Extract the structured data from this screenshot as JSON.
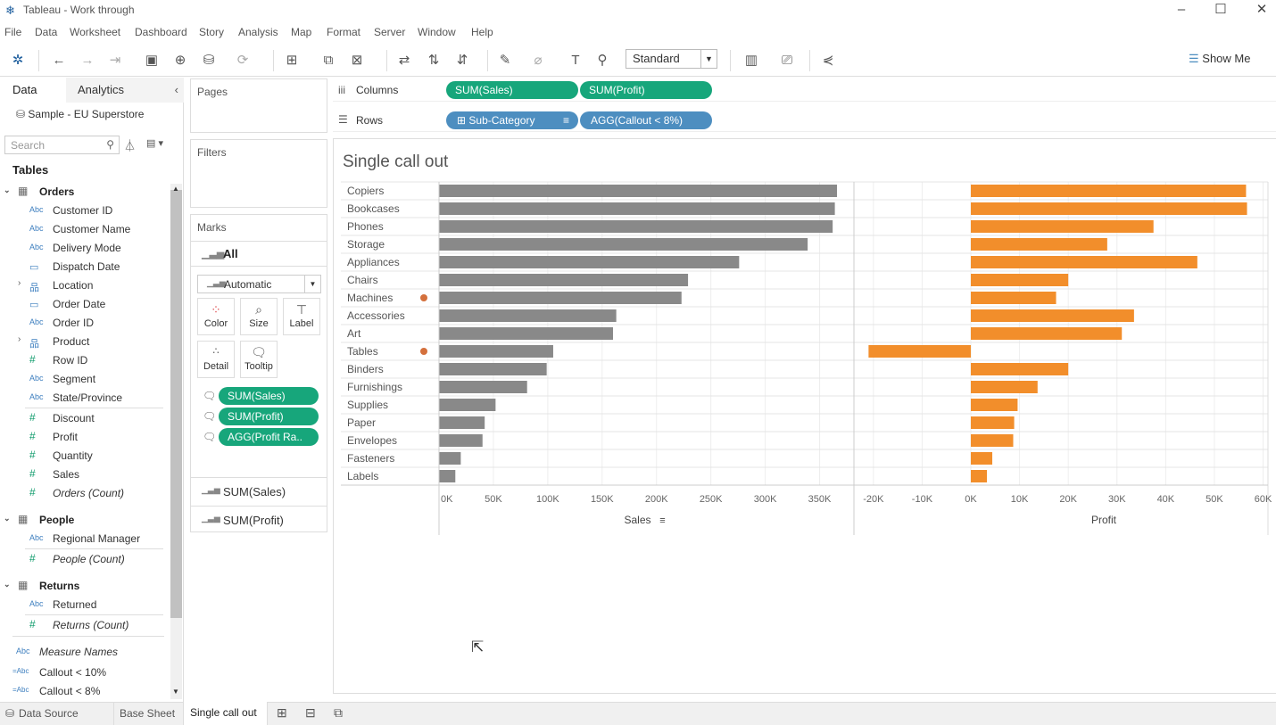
{
  "window": {
    "title": "Tableau - Work through"
  },
  "menu": [
    "File",
    "Data",
    "Worksheet",
    "Dashboard",
    "Story",
    "Analysis",
    "Map",
    "Format",
    "Server",
    "Window",
    "Help"
  ],
  "toolbar": {
    "fit_mode": "Standard",
    "show_me": "Show Me"
  },
  "data_pane": {
    "tabs": [
      "Data",
      "Analytics"
    ],
    "datasource": "Sample - EU Superstore",
    "search_placeholder": "Search",
    "tables_header": "Tables",
    "orders": {
      "name": "Orders",
      "fields": [
        "Customer ID",
        "Customer Name",
        "Delivery Mode",
        "Dispatch Date",
        "Location",
        "Order Date",
        "Order ID",
        "Product",
        "Row ID",
        "Segment",
        "State/Province"
      ],
      "measures": [
        "Discount",
        "Profit",
        "Quantity",
        "Sales",
        "Orders (Count)"
      ]
    },
    "people": {
      "name": "People",
      "fields": [
        "Regional Manager"
      ],
      "measures": [
        "People (Count)"
      ]
    },
    "returns": {
      "name": "Returns",
      "fields": [
        "Returned"
      ],
      "measures": [
        "Returns (Count)"
      ]
    },
    "extra": [
      "Measure Names",
      "Callout < 10%",
      "Callout < 8%"
    ]
  },
  "cards": {
    "pages": "Pages",
    "filters": "Filters",
    "marks": "Marks",
    "marks_all": "All",
    "mark_type": "Automatic",
    "buttons": [
      "Color",
      "Size",
      "Label",
      "Detail",
      "Tooltip"
    ],
    "mark_pills": [
      "SUM(Sales)",
      "SUM(Profit)",
      "AGG(Profit Ra.."
    ],
    "measure_rows": [
      "SUM(Sales)",
      "SUM(Profit)"
    ]
  },
  "shelves": {
    "columns_label": "Columns",
    "rows_label": "Rows",
    "columns": [
      "SUM(Sales)",
      "SUM(Profit)"
    ],
    "rows": [
      "Sub-Category",
      "AGG(Callout < 8%)"
    ]
  },
  "sheet_tabs": [
    "Data Source",
    "Base Sheet",
    "Single call out"
  ],
  "chart_data": {
    "type": "bar",
    "title": "Single call out",
    "categories": [
      "Copiers",
      "Bookcases",
      "Phones",
      "Storage",
      "Appliances",
      "Chairs",
      "Machines",
      "Accessories",
      "Art",
      "Tables",
      "Binders",
      "Furnishings",
      "Supplies",
      "Paper",
      "Envelopes",
      "Fasteners",
      "Labels"
    ],
    "callout": [
      "Machines",
      "Tables"
    ],
    "series": [
      {
        "name": "Sales",
        "color": "#898989",
        "values": [
          366000,
          364000,
          362000,
          339000,
          276000,
          229000,
          223000,
          163000,
          160000,
          105000,
          99000,
          81000,
          52000,
          42000,
          40000,
          20000,
          15000
        ]
      },
      {
        "name": "Profit",
        "color": "#f28e2b",
        "values": [
          56500,
          56700,
          37500,
          28000,
          46500,
          20000,
          17500,
          33500,
          31000,
          -21000,
          20000,
          13700,
          9600,
          8900,
          8700,
          4400,
          3300
        ]
      }
    ],
    "sales_axis": {
      "label": "Sales",
      "ticks": [
        "0K",
        "50K",
        "100K",
        "150K",
        "200K",
        "250K",
        "300K",
        "350K"
      ],
      "range": [
        0,
        375000
      ]
    },
    "profit_axis": {
      "label": "Profit",
      "ticks": [
        "-20K",
        "-10K",
        "0K",
        "10K",
        "20K",
        "30K",
        "40K",
        "50K",
        "60K"
      ],
      "range": [
        -21000,
        60000
      ]
    },
    "callout_color": "#d4703c"
  }
}
